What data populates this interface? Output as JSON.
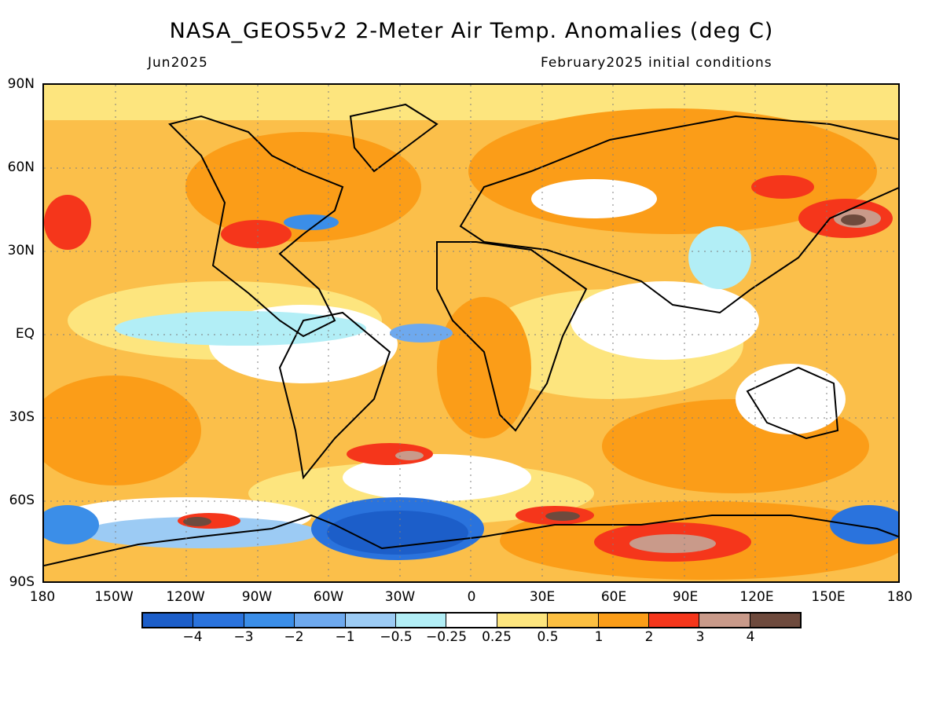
{
  "title": "NASA_GEOS5v2 2-Meter Air Temp. Anomalies (deg C)",
  "subtitle_left": "Jun2025",
  "subtitle_right": "February2025 initial conditions",
  "lat_labels": [
    "90N",
    "60N",
    "30N",
    "EQ",
    "30S",
    "60S",
    "90S"
  ],
  "lon_labels": [
    "180",
    "150W",
    "120W",
    "90W",
    "60W",
    "30W",
    "0",
    "30E",
    "60E",
    "90E",
    "120E",
    "150E",
    "180"
  ],
  "colorbar": {
    "colors": [
      "#1c5ec9",
      "#2a73dd",
      "#3b8ee8",
      "#6ea9ee",
      "#9ccbf4",
      "#b2eef6",
      "#ffffff",
      "#fde57e",
      "#fcbf41",
      "#fb9d18",
      "#f5361b",
      "#c99a8a",
      "#6e4a3d"
    ],
    "labels": [
      "−4",
      "−3",
      "−2",
      "−1",
      "−0.5",
      "−0.25",
      "0.25",
      "0.5",
      "1",
      "2",
      "3",
      "4"
    ]
  },
  "colors": {
    "base_warm": "#fbbf4a",
    "moderate_warm": "#fb9d18",
    "strong_warm": "#f5361b",
    "cold": "#2a73dd"
  }
}
